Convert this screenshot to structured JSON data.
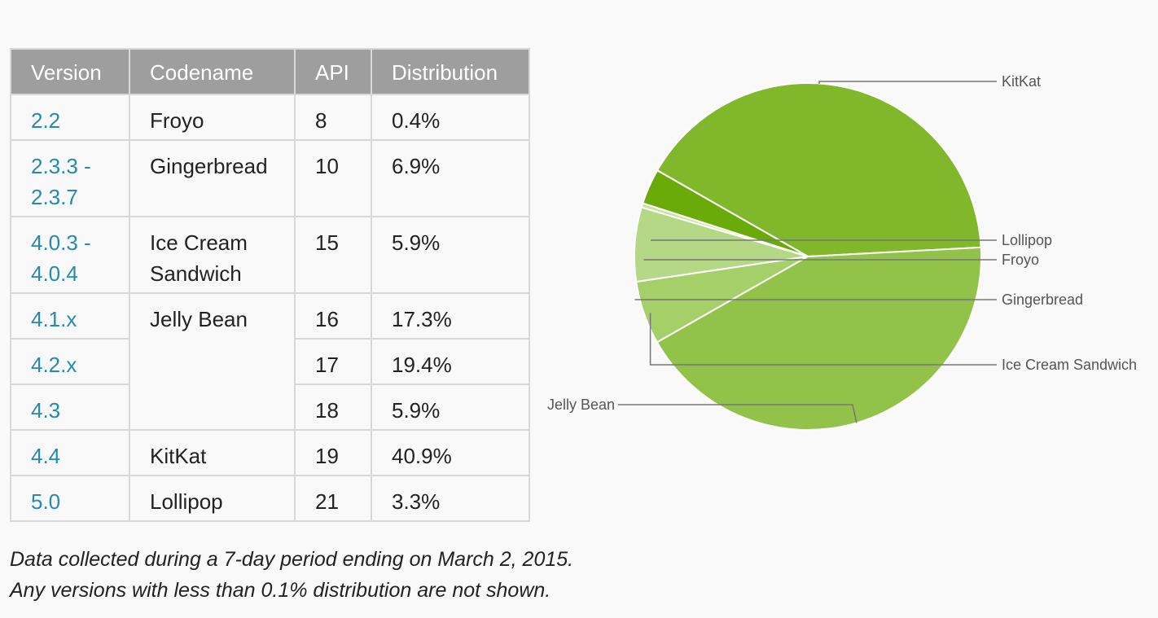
{
  "table": {
    "headers": [
      "Version",
      "Codename",
      "API",
      "Distribution"
    ],
    "rows": [
      {
        "version": "2.2",
        "codename": "Froyo",
        "codename_rowspan": 1,
        "api": "8",
        "distribution": "0.4%",
        "tall": false
      },
      {
        "version": "2.3.3 - 2.3.7",
        "codename": "Gingerbread",
        "codename_rowspan": 1,
        "api": "10",
        "distribution": "6.9%",
        "tall": true
      },
      {
        "version": "4.0.3 - 4.0.4",
        "codename": "Ice Cream Sandwich",
        "codename_rowspan": 1,
        "api": "15",
        "distribution": "5.9%",
        "tall": true
      },
      {
        "version": "4.1.x",
        "codename": "Jelly Bean",
        "codename_rowspan": 3,
        "api": "16",
        "distribution": "17.3%",
        "tall": false
      },
      {
        "version": "4.2.x",
        "codename": null,
        "codename_rowspan": 0,
        "api": "17",
        "distribution": "19.4%",
        "tall": false
      },
      {
        "version": "4.3",
        "codename": null,
        "codename_rowspan": 0,
        "api": "18",
        "distribution": "5.9%",
        "tall": false
      },
      {
        "version": "4.4",
        "codename": "KitKat",
        "codename_rowspan": 1,
        "api": "19",
        "distribution": "40.9%",
        "tall": false
      },
      {
        "version": "5.0",
        "codename": "Lollipop",
        "codename_rowspan": 1,
        "api": "21",
        "distribution": "3.3%",
        "tall": false
      }
    ]
  },
  "footnote": {
    "line1": "Data collected during a 7-day period ending on March 2, 2015.",
    "line2": "Any versions with less than 0.1% distribution are not shown."
  },
  "colors": {
    "header_bg": "#9e9e9e",
    "version_link": "#258aaf",
    "kitkat": "#80b72b",
    "lollipop": "#6aab0a",
    "froyo": "#c9e3a6",
    "gingerbread": "#b5d886",
    "ics": "#a5cf68",
    "jellybean": "#93c24a"
  },
  "chart_data": {
    "type": "pie",
    "title": "",
    "slices": [
      {
        "label": "KitKat",
        "value": 40.9,
        "color": "#80b72b"
      },
      {
        "label": "Lollipop",
        "value": 3.3,
        "color": "#6aab0a"
      },
      {
        "label": "Froyo",
        "value": 0.4,
        "color": "#c9e3a6"
      },
      {
        "label": "Gingerbread",
        "value": 6.9,
        "color": "#b5d886"
      },
      {
        "label": "Ice Cream Sandwich",
        "value": 5.9,
        "color": "#a5cf68"
      },
      {
        "label": "Jelly Bean",
        "value": 42.6,
        "color": "#93c24a"
      }
    ]
  }
}
